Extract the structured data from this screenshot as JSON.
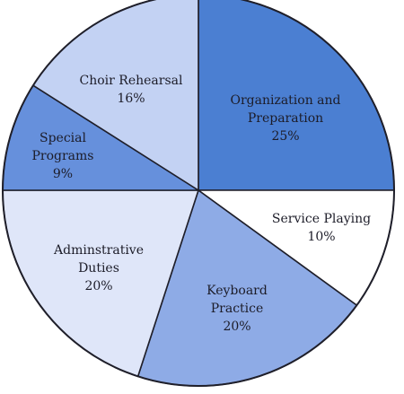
{
  "chart_data": {
    "type": "pie",
    "title": "",
    "slices": [
      {
        "label_lines": [
          "Organization and",
          "Preparation"
        ],
        "value": 25,
        "value_label": "25%",
        "color": "#4b7fd2"
      },
      {
        "label_lines": [
          "Service Playing"
        ],
        "value": 10,
        "value_label": "10%",
        "color": "#ffffff"
      },
      {
        "label_lines": [
          "Keyboard",
          "Practice"
        ],
        "value": 20,
        "value_label": "20%",
        "color": "#8eabe6"
      },
      {
        "label_lines": [
          "Adminstrative",
          "Duties"
        ],
        "value": 20,
        "value_label": "20%",
        "color": "#dfe6f9"
      },
      {
        "label_lines": [
          "Special",
          "Programs"
        ],
        "value": 9,
        "value_label": "9%",
        "color": "#6690dc"
      },
      {
        "label_lines": [
          "Choir Rehearsal"
        ],
        "value": 16,
        "value_label": "16%",
        "color": "#c3d2f3"
      }
    ],
    "start": "top, clockwise",
    "legend": "none"
  }
}
